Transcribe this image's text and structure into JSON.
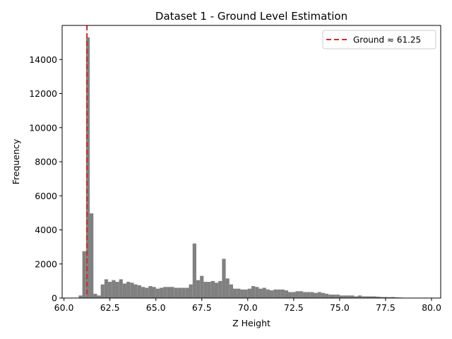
{
  "chart_data": {
    "type": "bar",
    "title": "Dataset 1 - Ground Level Estimation",
    "xlabel": "Z Height",
    "ylabel": "Frequency",
    "xlim": [
      59.9,
      80.5
    ],
    "ylim": [
      0,
      16000
    ],
    "x_ticks": [
      60.0,
      62.5,
      65.0,
      67.5,
      70.0,
      72.5,
      75.0,
      77.5,
      80.0
    ],
    "x_tick_labels": [
      "60.0",
      "62.5",
      "65.0",
      "67.5",
      "70.0",
      "72.5",
      "75.0",
      "77.5",
      "80.0"
    ],
    "y_ticks": [
      0,
      2000,
      4000,
      6000,
      8000,
      10000,
      12000,
      14000
    ],
    "y_tick_labels": [
      "0",
      "2000",
      "4000",
      "6000",
      "8000",
      "10000",
      "12000",
      "14000"
    ],
    "grid": false,
    "legend": {
      "position": "top-right",
      "entries": [
        {
          "label": "Ground ≈ 61.25",
          "style": "dashed-line",
          "color": "#d62728"
        }
      ]
    },
    "bar_color": "#808080",
    "bin_start": 60.4,
    "bin_width": 0.2,
    "values": [
      0,
      0,
      150,
      2750,
      15300,
      4970,
      250,
      150,
      800,
      1100,
      950,
      1050,
      950,
      1100,
      850,
      950,
      900,
      800,
      750,
      650,
      600,
      700,
      650,
      550,
      600,
      650,
      650,
      650,
      600,
      600,
      600,
      600,
      800,
      3200,
      1050,
      1300,
      950,
      950,
      1000,
      900,
      1000,
      2300,
      1150,
      800,
      550,
      550,
      500,
      500,
      550,
      700,
      650,
      550,
      600,
      500,
      450,
      500,
      500,
      500,
      450,
      350,
      350,
      400,
      400,
      350,
      350,
      350,
      300,
      350,
      300,
      250,
      200,
      200,
      200,
      150,
      150,
      150,
      150,
      100,
      150,
      100,
      100,
      100,
      100,
      80,
      60,
      60,
      50,
      60,
      40,
      30,
      20,
      20,
      15,
      10,
      10
    ],
    "annotations": [
      {
        "type": "vline",
        "x": 61.25,
        "color": "#d62728",
        "style": "dashed",
        "label": "Ground ≈ 61.25"
      }
    ]
  }
}
